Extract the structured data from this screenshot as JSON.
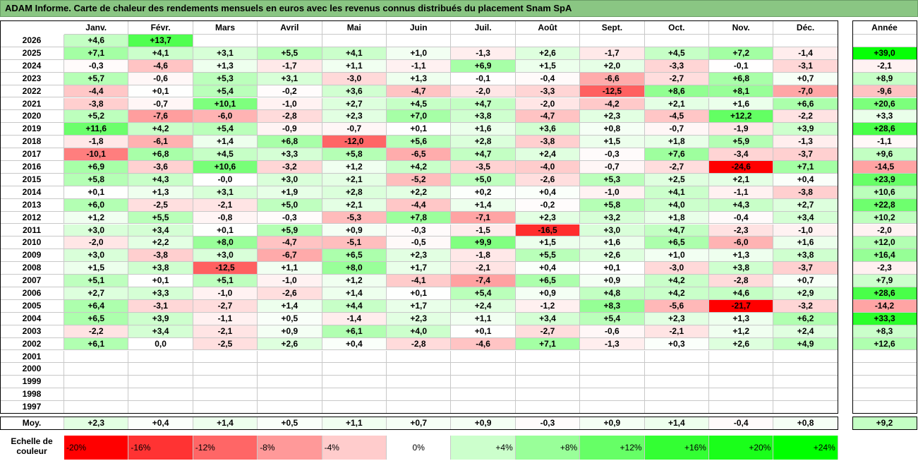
{
  "title": "ADAM Informe. Carte de chaleur des rendements mensuels en euros avec les revenus connus distribués du placement Snam SpA",
  "chart_data": {
    "type": "heatmap",
    "columns": [
      "Janv.",
      "Févr.",
      "Mars",
      "Avril",
      "Mai",
      "Juin",
      "Juil.",
      "Août",
      "Sept.",
      "Oct.",
      "Nov.",
      "Déc."
    ],
    "year_column": "Année",
    "rows": [
      {
        "year": "2026",
        "months": [
          "+4,6",
          "+13,7",
          null,
          null,
          null,
          null,
          null,
          null,
          null,
          null,
          null,
          null
        ],
        "annual": null
      },
      {
        "year": "2025",
        "months": [
          "+7,1",
          "+4,1",
          "+3,1",
          "+5,5",
          "+4,1",
          "+1,0",
          "-1,3",
          "+2,6",
          "-1,7",
          "+4,5",
          "+7,2",
          "-1,4"
        ],
        "annual": "+39,0"
      },
      {
        "year": "2024",
        "months": [
          "-0,3",
          "-4,6",
          "+1,3",
          "-1,7",
          "+1,1",
          "-1,1",
          "+6,9",
          "+1,5",
          "+2,0",
          "-3,3",
          "-0,1",
          "-3,1"
        ],
        "annual": "-2,1"
      },
      {
        "year": "2023",
        "months": [
          "+5,7",
          "-0,6",
          "+5,3",
          "+3,1",
          "-3,0",
          "+1,3",
          "-0,1",
          "-0,4",
          "-6,6",
          "-2,7",
          "+6,8",
          "+0,7"
        ],
        "annual": "+8,9"
      },
      {
        "year": "2022",
        "months": [
          "-4,4",
          "+0,1",
          "+5,4",
          "-0,2",
          "+3,6",
          "-4,7",
          "-2,0",
          "-3,3",
          "-12,5",
          "+8,6",
          "+8,1",
          "-7,0"
        ],
        "annual": "-9,6"
      },
      {
        "year": "2021",
        "months": [
          "-3,8",
          "-0,7",
          "+10,1",
          "-1,0",
          "+2,7",
          "+4,5",
          "+4,7",
          "-2,0",
          "-4,2",
          "+2,1",
          "+1,6",
          "+6,6"
        ],
        "annual": "+20,6"
      },
      {
        "year": "2020",
        "months": [
          "+5,2",
          "-7,6",
          "-6,0",
          "-2,8",
          "+2,3",
          "+7,0",
          "+3,8",
          "-4,7",
          "+2,3",
          "-4,5",
          "+12,2",
          "-2,2"
        ],
        "annual": "+3,3"
      },
      {
        "year": "2019",
        "months": [
          "+11,6",
          "+4,2",
          "+5,4",
          "-0,9",
          "-0,7",
          "+0,1",
          "+1,6",
          "+3,6",
          "+0,8",
          "-0,7",
          "-1,9",
          "+3,9"
        ],
        "annual": "+28,6"
      },
      {
        "year": "2018",
        "months": [
          "-1,8",
          "-6,1",
          "+1,4",
          "+6,8",
          "-12,0",
          "+5,6",
          "+2,8",
          "-3,8",
          "+1,5",
          "+1,8",
          "+5,9",
          "-1,3"
        ],
        "annual": "-1,1"
      },
      {
        "year": "2017",
        "months": [
          "-10,1",
          "+6,8",
          "+4,5",
          "+3,3",
          "+5,8",
          "-6,5",
          "+4,7",
          "+2,4",
          "-0,3",
          "+7,6",
          "-3,4",
          "-3,7"
        ],
        "annual": "+9,6"
      },
      {
        "year": "2016",
        "months": [
          "+6,9",
          "-3,6",
          "+10,6",
          "-3,2",
          "+1,2",
          "+4,2",
          "-3,5",
          "-4,0",
          "-0,7",
          "-2,7",
          "-24,6",
          "+7,1"
        ],
        "annual": "-14,5"
      },
      {
        "year": "2015",
        "months": [
          "+5,8",
          "+4,3",
          "-0,0",
          "+3,0",
          "+2,1",
          "-5,2",
          "+5,0",
          "-2,6",
          "+5,3",
          "+2,5",
          "+2,1",
          "+0,4"
        ],
        "annual": "+23,9"
      },
      {
        "year": "2014",
        "months": [
          "+0,1",
          "+1,3",
          "+3,1",
          "+1,9",
          "+2,8",
          "+2,2",
          "+0,2",
          "+0,4",
          "-1,0",
          "+4,1",
          "-1,1",
          "-3,8"
        ],
        "annual": "+10,6"
      },
      {
        "year": "2013",
        "months": [
          "+6,0",
          "-2,5",
          "-2,1",
          "+5,0",
          "+2,1",
          "-4,4",
          "+1,4",
          "-0,2",
          "+5,8",
          "+4,0",
          "+4,3",
          "+2,7"
        ],
        "annual": "+22,8"
      },
      {
        "year": "2012",
        "months": [
          "+1,2",
          "+5,5",
          "-0,8",
          "-0,3",
          "-5,3",
          "+7,8",
          "-7,1",
          "+2,3",
          "+3,2",
          "+1,8",
          "-0,4",
          "+3,4"
        ],
        "annual": "+10,2"
      },
      {
        "year": "2011",
        "months": [
          "+3,0",
          "+3,4",
          "+0,1",
          "+5,9",
          "+0,9",
          "-0,3",
          "-1,5",
          "-16,5",
          "+3,0",
          "+4,7",
          "-2,3",
          "-1,0"
        ],
        "annual": "-2,0"
      },
      {
        "year": "2010",
        "months": [
          "-2,0",
          "+2,2",
          "+8,0",
          "-4,7",
          "-5,1",
          "-0,5",
          "+9,9",
          "+1,5",
          "+1,6",
          "+6,5",
          "-6,0",
          "+1,6"
        ],
        "annual": "+12,0"
      },
      {
        "year": "2009",
        "months": [
          "+3,0",
          "-3,8",
          "+3,0",
          "-6,7",
          "+6,5",
          "+2,3",
          "-1,8",
          "+5,5",
          "+2,6",
          "+1,0",
          "+1,3",
          "+3,8"
        ],
        "annual": "+16,4"
      },
      {
        "year": "2008",
        "months": [
          "+1,5",
          "+3,8",
          "-12,5",
          "+1,1",
          "+8,0",
          "+1,7",
          "-2,1",
          "+0,4",
          "+0,1",
          "-3,0",
          "+3,8",
          "-3,7"
        ],
        "annual": "-2,3"
      },
      {
        "year": "2007",
        "months": [
          "+5,1",
          "+0,1",
          "+5,1",
          "-1,0",
          "+1,2",
          "-4,1",
          "-7,4",
          "+6,5",
          "+0,9",
          "+4,2",
          "-2,8",
          "+0,7"
        ],
        "annual": "+7,9"
      },
      {
        "year": "2006",
        "months": [
          "+2,7",
          "+3,3",
          "-1,0",
          "-2,6",
          "+1,4",
          "+0,1",
          "+5,4",
          "+0,9",
          "+4,8",
          "+4,2",
          "+4,6",
          "+2,9"
        ],
        "annual": "+28,6"
      },
      {
        "year": "2005",
        "months": [
          "+6,4",
          "-3,1",
          "-2,7",
          "+1,4",
          "+4,4",
          "+1,7",
          "+2,4",
          "-1,2",
          "+8,3",
          "-5,6",
          "-21,7",
          "-3,2"
        ],
        "annual": "-14,2"
      },
      {
        "year": "2004",
        "months": [
          "+6,5",
          "+3,9",
          "-1,1",
          "+0,5",
          "-1,4",
          "+2,3",
          "+1,1",
          "+3,4",
          "+5,4",
          "+2,3",
          "+1,3",
          "+6,2"
        ],
        "annual": "+33,3"
      },
      {
        "year": "2003",
        "months": [
          "-2,2",
          "+3,4",
          "-2,1",
          "+0,9",
          "+6,1",
          "+4,0",
          "+0,1",
          "-2,7",
          "-0,6",
          "-2,1",
          "+1,2",
          "+2,4"
        ],
        "annual": "+8,3"
      },
      {
        "year": "2002",
        "months": [
          "+6,1",
          "0,0",
          "-2,5",
          "+2,6",
          "+0,4",
          "-2,8",
          "-4,6",
          "+7,1",
          "-1,3",
          "+0,3",
          "+2,6",
          "+4,9"
        ],
        "annual": "+12,6"
      },
      {
        "year": "2001",
        "months": [
          null,
          null,
          null,
          null,
          null,
          null,
          null,
          null,
          null,
          null,
          null,
          null
        ],
        "annual": null
      },
      {
        "year": "2000",
        "months": [
          null,
          null,
          null,
          null,
          null,
          null,
          null,
          null,
          null,
          null,
          null,
          null
        ],
        "annual": null
      },
      {
        "year": "1999",
        "months": [
          null,
          null,
          null,
          null,
          null,
          null,
          null,
          null,
          null,
          null,
          null,
          null
        ],
        "annual": null
      },
      {
        "year": "1998",
        "months": [
          null,
          null,
          null,
          null,
          null,
          null,
          null,
          null,
          null,
          null,
          null,
          null
        ],
        "annual": null
      },
      {
        "year": "1997",
        "months": [
          null,
          null,
          null,
          null,
          null,
          null,
          null,
          null,
          null,
          null,
          null,
          null
        ],
        "annual": null
      }
    ],
    "average": {
      "label": "Moy.",
      "months": [
        "+2,3",
        "+0,4",
        "+1,4",
        "+0,5",
        "+1,1",
        "+0,7",
        "+0,9",
        "-0,3",
        "+0,9",
        "+1,4",
        "-0,4",
        "+0,8"
      ],
      "annual": "+9,2"
    },
    "color_scale": {
      "label": "Echelle de couleur",
      "steps": [
        {
          "label": "-20%",
          "color": "#ff0000"
        },
        {
          "label": "-16%",
          "color": "#ff3333"
        },
        {
          "label": "-12%",
          "color": "#ff6666"
        },
        {
          "label": "-8%",
          "color": "#ff9999"
        },
        {
          "label": "-4%",
          "color": "#ffcccc"
        },
        {
          "label": "0%",
          "color": "#ffffff"
        },
        {
          "label": "+4%",
          "color": "#ccffcc"
        },
        {
          "label": "+8%",
          "color": "#99ff99"
        },
        {
          "label": "+12%",
          "color": "#66ff66"
        },
        {
          "label": "+16%",
          "color": "#33ff33"
        },
        {
          "label": "+20%",
          "color": "#1aff1a"
        },
        {
          "label": "+24%",
          "color": "#00ff00"
        }
      ]
    }
  }
}
